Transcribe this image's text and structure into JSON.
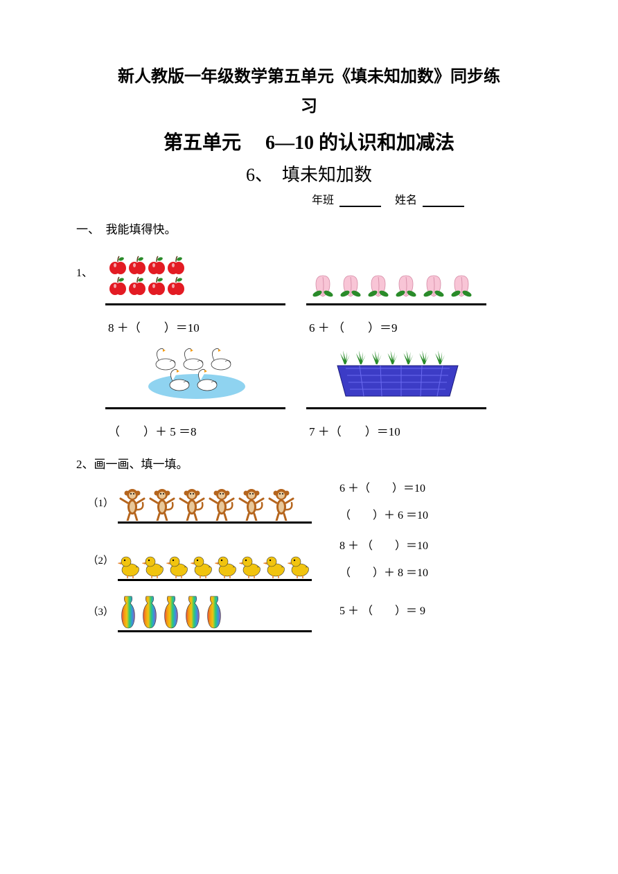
{
  "title_line1": "新人教版一年级数学第五单元《填未知加数》同步练",
  "title_line2": "习",
  "unit_title": "第五单元　 6—10 的认识和加减法",
  "sub_title": "6、　填未知加数",
  "class_label": "年班",
  "name_label": "姓名",
  "sec1_heading": "一、　我能填得快。",
  "q1_num": "1、",
  "q1": {
    "a": {
      "equation": "8 ＋（　　）＝10",
      "items": {
        "type": "apple",
        "count": 8,
        "color": "#e31b23",
        "leaf": "#2a8b2a"
      }
    },
    "b": {
      "equation": "6 ＋ （　　）＝9",
      "items": {
        "type": "peach",
        "count": 6,
        "color": "#f8c5d6",
        "leaf": "#2a8b2a"
      }
    },
    "c": {
      "equation": "（　　）＋ 5 ＝8",
      "items": {
        "type": "swan",
        "count": 5,
        "body": "#ffffff",
        "water": "#8fd3f0",
        "beak": "#f39c12"
      }
    },
    "d": {
      "equation": "7 ＋（　　）＝10",
      "items": {
        "type": "plant-basket",
        "count": 7,
        "leaf": "#2a8b2a",
        "basket": "#3c3cc6"
      }
    }
  },
  "sec2_heading": "2、画一画、填一填。",
  "q2": [
    {
      "sub": "（1）",
      "items": {
        "type": "monkey",
        "count": 6,
        "color": "#b5651d"
      },
      "eq1": "6 ＋（　　）＝10",
      "eq2": "（　　）＋ 6 ＝10"
    },
    {
      "sub": "（2）",
      "items": {
        "type": "duck",
        "count": 8,
        "color": "#f1c40f",
        "beak": "#e67e22"
      },
      "eq1": "8 ＋ （　　）＝10",
      "eq2": "（　　）＋ 8 ＝10"
    },
    {
      "sub": "（3）",
      "items": {
        "type": "vase",
        "count": 5
      },
      "eq1": "5 ＋ （　　）＝ 9",
      "eq2": ""
    }
  ],
  "colors": {
    "text": "#000000",
    "bg": "#ffffff",
    "rainbow": [
      "#e74c3c",
      "#f39c12",
      "#f1c40f",
      "#2ecc71",
      "#3498db",
      "#9b59b6"
    ]
  }
}
